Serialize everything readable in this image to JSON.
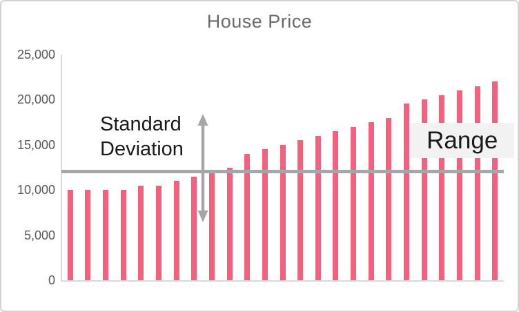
{
  "chart_data": {
    "type": "bar",
    "title": "House Price",
    "values": [
      10000,
      10000,
      10000,
      10000,
      10500,
      10500,
      11000,
      11500,
      12000,
      12500,
      14000,
      14500,
      15000,
      15500,
      16000,
      16500,
      17000,
      17500,
      18000,
      19600,
      20000,
      20500,
      21000,
      21500,
      22000
    ],
    "ylim": [
      0,
      25000
    ],
    "yticks": [
      {
        "value": 25000,
        "label": "25,000"
      },
      {
        "value": 20000,
        "label": "20,000"
      },
      {
        "value": 15000,
        "label": "15,000"
      },
      {
        "value": 10000,
        "label": "10,000"
      },
      {
        "value": 5000,
        "label": "5,000"
      },
      {
        "value": 0,
        "label": "0"
      }
    ],
    "xlabel": "",
    "ylabel": "",
    "gridlines": false,
    "legend": "none",
    "mean_line": {
      "value": 12100
    },
    "annotations": {
      "std_deviation": {
        "label_lines": [
          "Standard",
          "Deviation"
        ],
        "arrow_at_category_index": 8,
        "arrow_from_value": 6400,
        "arrow_to_value": 18400
      },
      "range": {
        "label": "Range",
        "box_from_value": 13500,
        "box_to_value": 17400,
        "box_from_category_index": 19.7,
        "box_to_category_index": 25.6
      }
    },
    "colors": {
      "bar": "#f4617e",
      "mean_line": "#a6a6a6",
      "arrow": "#a6a6a6",
      "axis_line": "#d9d9d9",
      "tick_label": "#595959",
      "title": "#6a6a6a",
      "annotation_text": "#1a1a1a",
      "range_box_bg": "#f2f2f2"
    }
  }
}
